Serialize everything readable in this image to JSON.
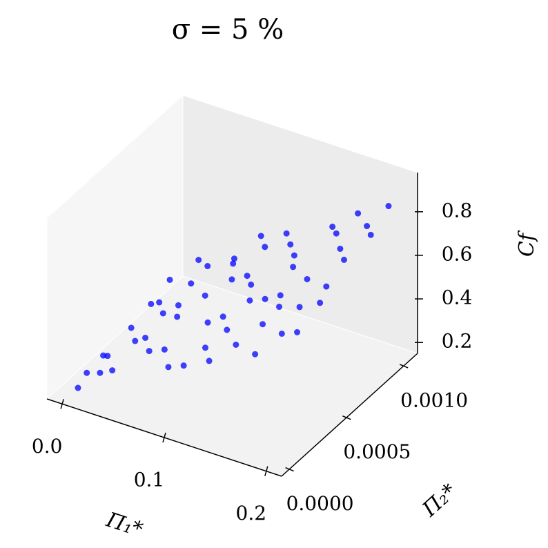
{
  "chart_data": {
    "type": "scatter3d",
    "title": "σ = 5 %",
    "x_label": "Π₁*",
    "y_label": "Π₂*",
    "z_label": "Cf",
    "color": "#0000ff",
    "xlim": [
      -0.015,
      0.215
    ],
    "ylim": [
      -7e-05,
      0.00112
    ],
    "zlim": [
      0.15,
      0.98
    ],
    "xticks": [
      {
        "value": 0,
        "label": "0.0"
      },
      0.1,
      0.2
    ],
    "yticks": [
      {
        "value": 0,
        "label": "0.0000"
      },
      {
        "value": 0.0005,
        "label": "0.0005"
      },
      {
        "value": 0.001,
        "label": "0.0010"
      }
    ],
    "zticks": [
      0.2,
      0.4,
      0.6,
      0.8
    ],
    "x": [
      0.002,
      0.005,
      0.01,
      0.015,
      0.02,
      0.008,
      0.03,
      0.04,
      0.05,
      0.06,
      0.07,
      0.08,
      0.09,
      0.1,
      0.1,
      0.11,
      0.12,
      0.13,
      0.14,
      0.15,
      0.16,
      0.17,
      0.18,
      0.19,
      0.2,
      0.2,
      0.025,
      0.035,
      0.045,
      0.055,
      0.065,
      0.075,
      0.085,
      0.095,
      0.105,
      0.115,
      0.125,
      0.135,
      0.145,
      0.155,
      0.165,
      0.175,
      0.185,
      0.195,
      0.012,
      0.003,
      0.018,
      0.06,
      0.11,
      0.16,
      0.19,
      0.14,
      0.09,
      0.04,
      0.205,
      0.17,
      0.12,
      0.07,
      0.03,
      0.2
    ],
    "y": [
      5e-05,
      0.0001,
      0.0002,
      0.0004,
      0.0006,
      0.0008,
      0.0001,
      0.0003,
      0.0005,
      0.0009,
      0.0002,
      0.0007,
      0.0004,
      0.0001,
      0.001,
      0.0006,
      0.0003,
      0.0008,
      0.0002,
      0.0005,
      0.0009,
      0.0001,
      0.0004,
      0.0007,
      0.001,
      0.0002,
      0.0009,
      0.0005,
      0.0008,
      0.0002,
      0.0006,
      0.001,
      0.0001,
      0.0007,
      0.0004,
      0.0009,
      0.0001,
      0.0005,
      0.001,
      0.0003,
      0.0006,
      0.0008,
      0.0002,
      0.0005,
      0.0006,
      0.0003,
      0.0001,
      0.0004,
      0.0002,
      0.0004,
      0.0009,
      0.0007,
      0.0009,
      0.0007,
      0.0008,
      0.001,
      0.0005,
      0.0008,
      0.0003,
      0.0004
    ],
    "z": [
      0.17,
      0.22,
      0.26,
      0.3,
      0.33,
      0.32,
      0.27,
      0.34,
      0.41,
      0.45,
      0.38,
      0.48,
      0.44,
      0.4,
      0.58,
      0.55,
      0.5,
      0.62,
      0.51,
      0.61,
      0.72,
      0.56,
      0.65,
      0.74,
      0.86,
      0.66,
      0.39,
      0.35,
      0.44,
      0.35,
      0.43,
      0.53,
      0.37,
      0.52,
      0.49,
      0.6,
      0.46,
      0.57,
      0.68,
      0.58,
      0.66,
      0.72,
      0.63,
      0.72,
      0.31,
      0.2,
      0.24,
      0.42,
      0.45,
      0.62,
      0.8,
      0.63,
      0.55,
      0.4,
      0.83,
      0.78,
      0.54,
      0.49,
      0.31,
      0.7
    ]
  }
}
